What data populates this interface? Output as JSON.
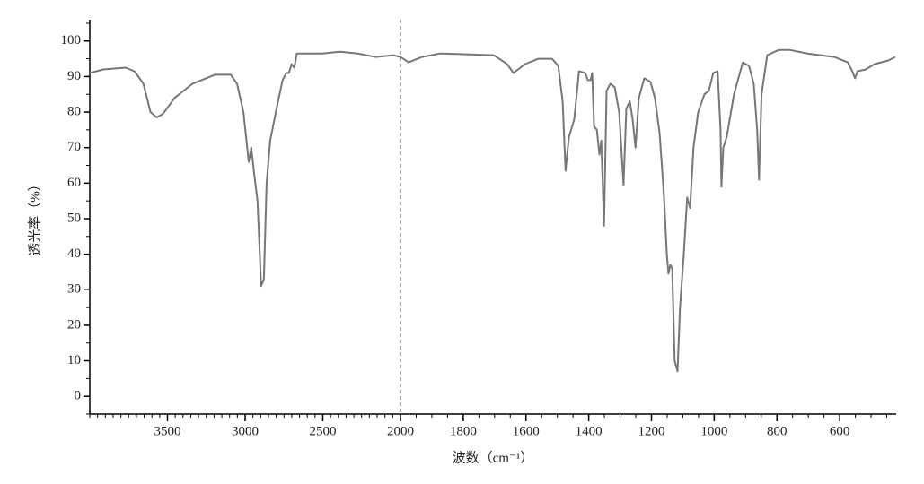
{
  "chart_data": {
    "type": "line",
    "x_label": "波数（cm⁻¹）",
    "y_label": "透光率（%）",
    "xlim": [
      4000,
      420
    ],
    "break_x": 2000,
    "xticks": [
      3500,
      3000,
      2500,
      2000,
      1800,
      1600,
      1400,
      1200,
      1000,
      800,
      600
    ],
    "ylim": [
      -5,
      106
    ],
    "yticks": [
      0,
      10,
      20,
      30,
      40,
      50,
      60,
      70,
      80,
      90,
      100
    ],
    "color": "#777777",
    "x": [
      4000,
      3914,
      3770,
      3713,
      3655,
      3609,
      3569,
      3529,
      3454,
      3339,
      3195,
      3092,
      3052,
      3011,
      2977,
      2960,
      2943,
      2920,
      2897,
      2879,
      2862,
      2839,
      2793,
      2759,
      2736,
      2718,
      2701,
      2684,
      2667,
      2506,
      2391,
      2276,
      2161,
      2046,
      2000,
      1974,
      1931,
      1874,
      1703,
      1660,
      1640,
      1603,
      1560,
      1517,
      1497,
      1483,
      1474,
      1463,
      1446,
      1431,
      1411,
      1403,
      1394,
      1389,
      1383,
      1374,
      1366,
      1360,
      1351,
      1343,
      1331,
      1317,
      1303,
      1289,
      1280,
      1269,
      1260,
      1251,
      1240,
      1223,
      1203,
      1189,
      1174,
      1160,
      1151,
      1146,
      1140,
      1134,
      1126,
      1117,
      1109,
      1097,
      1086,
      1077,
      1066,
      1051,
      1031,
      1017,
      1003,
      989,
      980,
      977,
      971,
      960,
      937,
      909,
      889,
      874,
      863,
      857,
      849,
      831,
      794,
      760,
      703,
      617,
      574,
      560,
      551,
      543,
      517,
      489,
      446,
      423
    ],
    "values": [
      91,
      92,
      92.5,
      91.5,
      88,
      80,
      78.5,
      79.5,
      84,
      88,
      90.5,
      90.5,
      88,
      80,
      66,
      70,
      63,
      55,
      31,
      33,
      60,
      72,
      82,
      89,
      91,
      91,
      93.5,
      92.5,
      96.5,
      96.5,
      97,
      96.5,
      95.5,
      96,
      95.5,
      94,
      95.5,
      96.5,
      96,
      93.5,
      91,
      93.5,
      95,
      95,
      93,
      83,
      63.5,
      73,
      78,
      91.5,
      91,
      89,
      89,
      91,
      76,
      75,
      68,
      72,
      48,
      86,
      88,
      87,
      80,
      59.5,
      81,
      83,
      78,
      70,
      84,
      89.5,
      88.5,
      84,
      74,
      56,
      40,
      34.5,
      37,
      36,
      10,
      7,
      25,
      40,
      56,
      53,
      70,
      80,
      85,
      86,
      91,
      91.5,
      75,
      59,
      70,
      73,
      85,
      94,
      93,
      88,
      75,
      61,
      85,
      96,
      97.5,
      97.5,
      96.5,
      95.5,
      94,
      91.5,
      89.5,
      91.5,
      92,
      93.5,
      94.5,
      95.5
    ]
  }
}
